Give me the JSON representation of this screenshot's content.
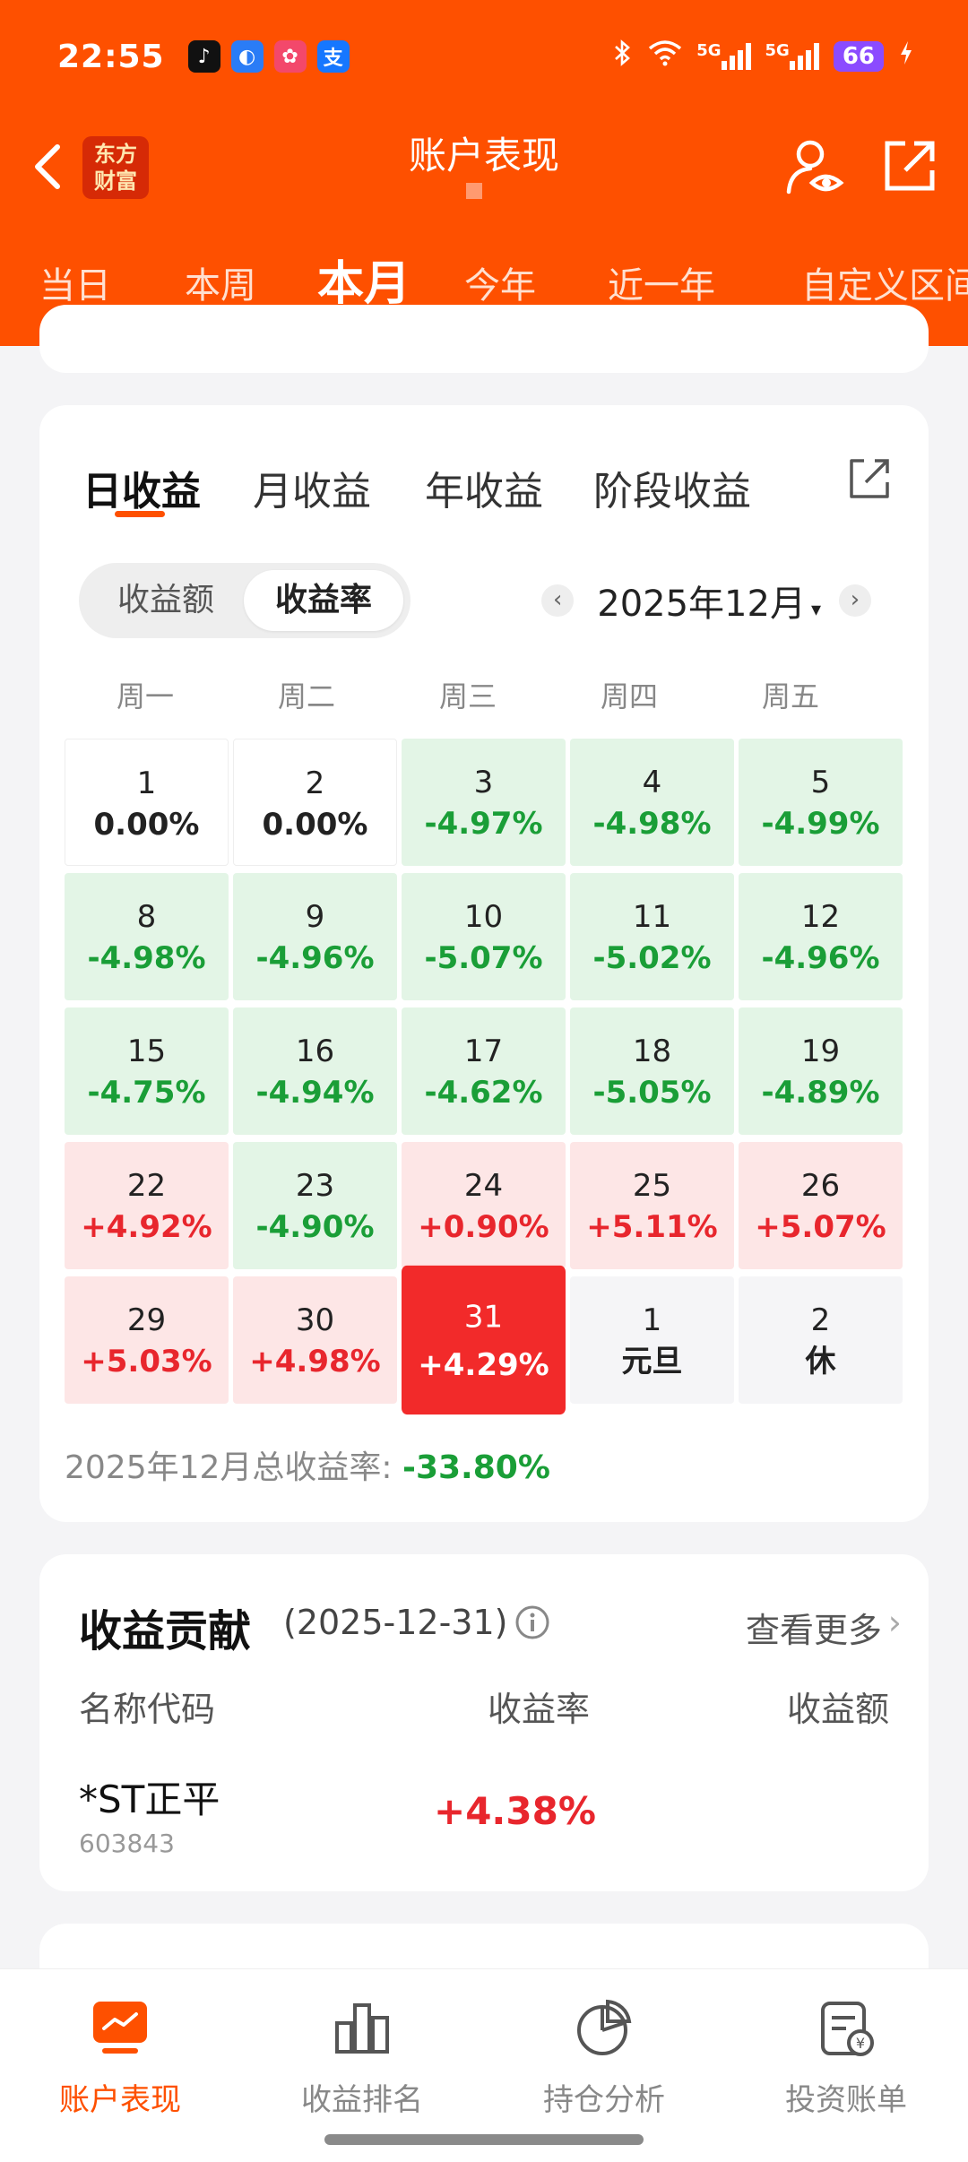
{
  "status_bar": {
    "time": "22:55",
    "apps": [
      {
        "icon": "tiktok-icon",
        "glyph": "♪",
        "color": "#111111"
      },
      {
        "icon": "browser-icon",
        "glyph": "◐",
        "color": "#2a7cf6"
      },
      {
        "icon": "game-icon",
        "glyph": "✿",
        "color": "#f3486b"
      },
      {
        "icon": "alipay-icon",
        "glyph": "支",
        "color": "#1677ff"
      }
    ],
    "signal_label_1": "5G",
    "signal_label_2": "5G",
    "battery": "66"
  },
  "nav": {
    "title": "账户表现",
    "logo_line1": "东方",
    "logo_line2": "财富"
  },
  "period_tabs": [
    "当日",
    "本周",
    "本月",
    "今年",
    "近一年",
    "自定义区间"
  ],
  "period_active": "本月",
  "return_tabs": [
    "日收益",
    "月收益",
    "年收益",
    "阶段收益"
  ],
  "return_active": "日收益",
  "segment": {
    "amount": "收益额",
    "rate": "收益率",
    "selected": "收益率"
  },
  "month_selector": {
    "label": "2025年12月",
    "prev": "‹",
    "next": "›",
    "caret": "▾"
  },
  "weekdays": [
    "周一",
    "周二",
    "周三",
    "周四",
    "周五"
  ],
  "calendar": [
    {
      "day": "1",
      "value": "0.00%",
      "type": "zero"
    },
    {
      "day": "2",
      "value": "0.00%",
      "type": "zero"
    },
    {
      "day": "3",
      "value": "-4.97%",
      "type": "neg"
    },
    {
      "day": "4",
      "value": "-4.98%",
      "type": "neg"
    },
    {
      "day": "5",
      "value": "-4.99%",
      "type": "neg"
    },
    {
      "day": "8",
      "value": "-4.98%",
      "type": "neg"
    },
    {
      "day": "9",
      "value": "-4.96%",
      "type": "neg"
    },
    {
      "day": "10",
      "value": "-5.07%",
      "type": "neg"
    },
    {
      "day": "11",
      "value": "-5.02%",
      "type": "neg"
    },
    {
      "day": "12",
      "value": "-4.96%",
      "type": "neg"
    },
    {
      "day": "15",
      "value": "-4.75%",
      "type": "neg"
    },
    {
      "day": "16",
      "value": "-4.94%",
      "type": "neg"
    },
    {
      "day": "17",
      "value": "-4.62%",
      "type": "neg"
    },
    {
      "day": "18",
      "value": "-5.05%",
      "type": "neg"
    },
    {
      "day": "19",
      "value": "-4.89%",
      "type": "neg"
    },
    {
      "day": "22",
      "value": "+4.92%",
      "type": "pos"
    },
    {
      "day": "23",
      "value": "-4.90%",
      "type": "neg"
    },
    {
      "day": "24",
      "value": "+0.90%",
      "type": "pos"
    },
    {
      "day": "25",
      "value": "+5.11%",
      "type": "pos"
    },
    {
      "day": "26",
      "value": "+5.07%",
      "type": "pos"
    },
    {
      "day": "29",
      "value": "+5.03%",
      "type": "pos"
    },
    {
      "day": "30",
      "value": "+4.98%",
      "type": "pos"
    },
    {
      "day": "31",
      "value": "+4.29%",
      "type": "sel"
    },
    {
      "day": "1",
      "value": "元旦",
      "type": "hol"
    },
    {
      "day": "2",
      "value": "休",
      "type": "hol"
    }
  ],
  "total": {
    "label": "2025年12月总收益率: ",
    "value": "-33.80%"
  },
  "contribution": {
    "title": "收益贡献",
    "date": "(2025-12-31)",
    "more": "查看更多",
    "headers": {
      "name": "名称代码",
      "rate": "收益率",
      "amount": "收益额"
    },
    "rows": [
      {
        "name": "*ST正平",
        "code": "603843",
        "rate": "+4.38%"
      }
    ]
  },
  "bottom_nav": [
    {
      "label": "账户表现",
      "icon": "chart-screen-icon",
      "active": true
    },
    {
      "label": "收益排名",
      "icon": "bar-ranking-icon",
      "active": false
    },
    {
      "label": "持仓分析",
      "icon": "pie-chart-icon",
      "active": false
    },
    {
      "label": "投资账单",
      "icon": "bill-icon",
      "active": false
    }
  ],
  "colors": {
    "brand": "#fe5000",
    "gain": "#e8262d",
    "loss": "#1a9e37"
  }
}
